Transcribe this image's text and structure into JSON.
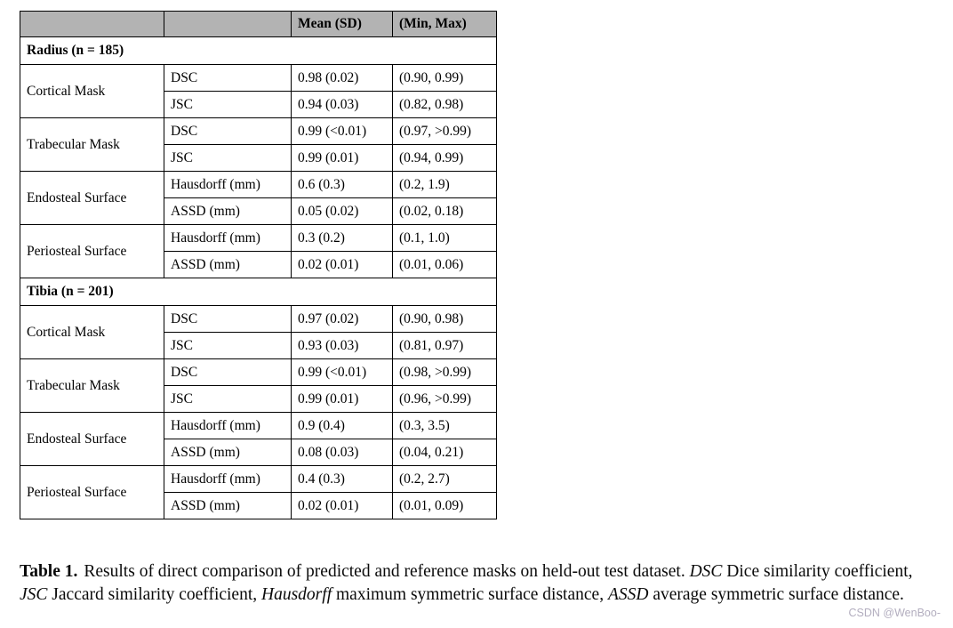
{
  "table": {
    "header": {
      "col1": "",
      "col2": "",
      "mean_sd": "Mean (SD)",
      "min_max": "(Min, Max)"
    },
    "sections": [
      {
        "title": "Radius (n = 185)",
        "groups": [
          {
            "name": "Cortical Mask",
            "rows": [
              {
                "metric": "DSC",
                "mean_sd": "0.98 (0.02)",
                "min_max": "(0.90, 0.99)"
              },
              {
                "metric": "JSC",
                "mean_sd": "0.94 (0.03)",
                "min_max": "(0.82, 0.98)"
              }
            ]
          },
          {
            "name": "Trabecular Mask",
            "rows": [
              {
                "metric": "DSC",
                "mean_sd": "0.99 (<0.01)",
                "min_max": "(0.97, >0.99)"
              },
              {
                "metric": "JSC",
                "mean_sd": "0.99 (0.01)",
                "min_max": "(0.94, 0.99)"
              }
            ]
          },
          {
            "name": "Endosteal Surface",
            "rows": [
              {
                "metric": "Hausdorff (mm)",
                "mean_sd": "0.6 (0.3)",
                "min_max": "(0.2, 1.9)"
              },
              {
                "metric": "ASSD (mm)",
                "mean_sd": "0.05 (0.02)",
                "min_max": "(0.02, 0.18)"
              }
            ]
          },
          {
            "name": "Periosteal Surface",
            "rows": [
              {
                "metric": "Hausdorff (mm)",
                "mean_sd": "0.3 (0.2)",
                "min_max": "(0.1, 1.0)"
              },
              {
                "metric": "ASSD (mm)",
                "mean_sd": "0.02 (0.01)",
                "min_max": "(0.01, 0.06)"
              }
            ]
          }
        ]
      },
      {
        "title": "Tibia (n = 201)",
        "groups": [
          {
            "name": "Cortical Mask",
            "rows": [
              {
                "metric": "DSC",
                "mean_sd": "0.97 (0.02)",
                "min_max": "(0.90, 0.98)"
              },
              {
                "metric": "JSC",
                "mean_sd": "0.93 (0.03)",
                "min_max": "(0.81, 0.97)"
              }
            ]
          },
          {
            "name": "Trabecular Mask",
            "rows": [
              {
                "metric": "DSC",
                "mean_sd": "0.99 (<0.01)",
                "min_max": "(0.98, >0.99)"
              },
              {
                "metric": "JSC",
                "mean_sd": "0.99 (0.01)",
                "min_max": "(0.96, >0.99)"
              }
            ]
          },
          {
            "name": "Endosteal Surface",
            "rows": [
              {
                "metric": "Hausdorff (mm)",
                "mean_sd": "0.9 (0.4)",
                "min_max": "(0.3, 3.5)"
              },
              {
                "metric": "ASSD (mm)",
                "mean_sd": "0.08 (0.03)",
                "min_max": "(0.04, 0.21)"
              }
            ]
          },
          {
            "name": "Periosteal Surface",
            "rows": [
              {
                "metric": "Hausdorff (mm)",
                "mean_sd": "0.4 (0.3)",
                "min_max": "(0.2, 2.7)"
              },
              {
                "metric": "ASSD (mm)",
                "mean_sd": "0.02 (0.01)",
                "min_max": "(0.01, 0.09)"
              }
            ]
          }
        ]
      }
    ]
  },
  "caption": {
    "label": "Table 1.",
    "text_1": "Results of direct comparison of predicted and reference masks on held-out test dataset. ",
    "abbr_1": "DSC",
    "text_2": " Dice similarity coefficient, ",
    "abbr_2": "JSC",
    "text_3": " Jaccard similarity coefficient, ",
    "abbr_3": "Hausdorff",
    "text_4": " maximum symmetric surface distance, ",
    "abbr_4": "ASSD",
    "text_5": " average symmetric surface distance."
  },
  "watermark": {
    "text": "CSDN @WenBoo-"
  },
  "colors": {
    "page_bg": "#ffffff",
    "header_bg": "#b3b3b3",
    "border": "#000000",
    "text": "#000000",
    "watermark": "#b3aebf"
  }
}
